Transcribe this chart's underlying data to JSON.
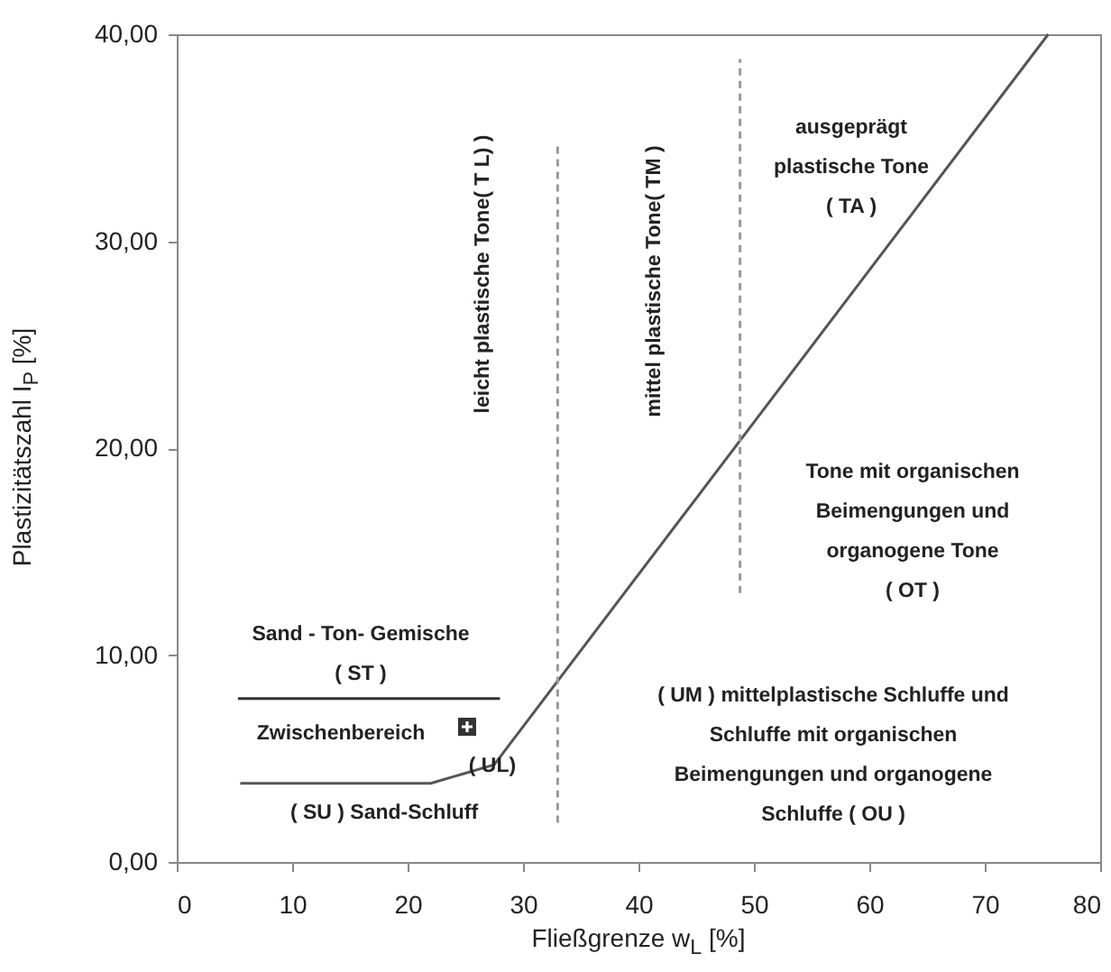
{
  "chart_data": {
    "type": "line",
    "xlabel": "Fließgrenze w$_{L}$ [%]",
    "ylabel": "Plastizitätszahl I$_{P}$ [%]",
    "xlim": [
      0,
      80
    ],
    "ylim": [
      0,
      40
    ],
    "xticks": [
      0,
      10,
      20,
      30,
      40,
      50,
      60,
      70,
      80
    ],
    "yticks": [
      {
        "value": 0,
        "label": "0,00"
      },
      {
        "value": 10,
        "label": "10,00"
      },
      {
        "value": 20,
        "label": "20,00"
      },
      {
        "value": 30,
        "label": "30,00"
      },
      {
        "value": 40,
        "label": "40,00"
      }
    ],
    "grid": false,
    "series": [
      {
        "color": "#555555",
        "x": [
          5.5,
          22,
          27.5,
          75.5
        ],
        "values": [
          3.8,
          3.8,
          4.7,
          40
        ],
        "line_style": "solid"
      },
      {
        "color": "#333333",
        "x": [
          5.3,
          28
        ],
        "values": [
          7.9,
          7.9
        ],
        "line_style": "solid"
      },
      {
        "color": "#999999",
        "x": [
          33,
          33
        ],
        "values": [
          1.9,
          34.6
        ],
        "line_style": "dashed"
      },
      {
        "color": "#999999",
        "x": [
          48.8,
          48.8
        ],
        "values": [
          13,
          38.8
        ],
        "line_style": "dashed"
      }
    ],
    "annotations": [
      "leicht plastische Tone( T L) )",
      "mittel plastische Tone( TM )",
      "ausgeprägt\nplastische Tone\n( TA )",
      "Tone mit organischen\nBeimengungen und\norganogene Tone\n( OT )",
      "Sand - Ton- Gemische\n( ST )",
      "Zwischenbereich",
      "( UL)",
      "( SU )  Sand-Schluff",
      "( UM ) mittelplastische Schluffe und\nSchluffe mit organischen\nBeimengungen und organogene\nSchluffe ( OU )"
    ]
  }
}
